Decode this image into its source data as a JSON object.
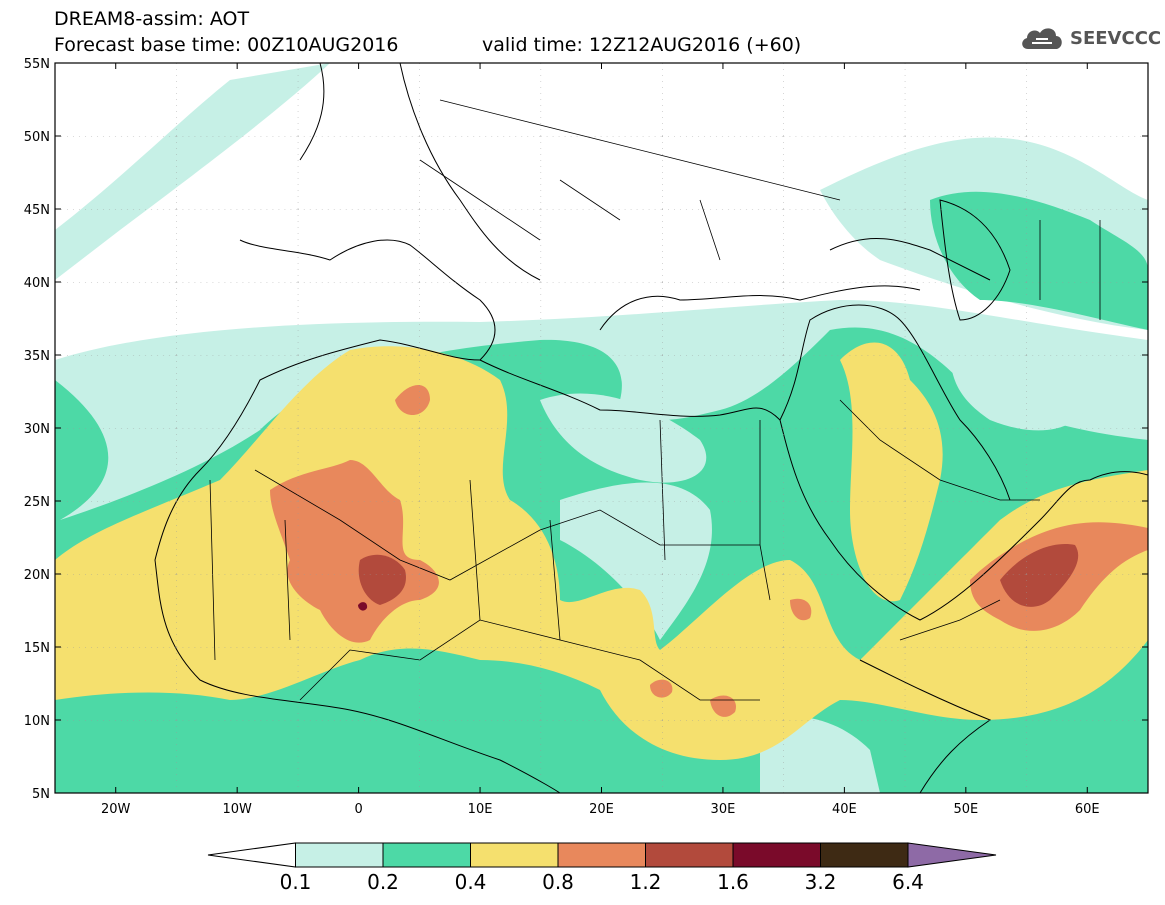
{
  "title": {
    "line1": "DREAM8-assim: AOT",
    "base_time": "Forecast base time: 00Z10AUG2016",
    "valid_time": "valid time: 12Z12AUG2016 (+60)"
  },
  "logo": {
    "text": "SEEVCCC",
    "icon": "cloud-icon"
  },
  "map": {
    "lon_ticks": [
      "20W",
      "10W",
      "0",
      "10E",
      "20E",
      "30E",
      "40E",
      "50E",
      "60E"
    ],
    "lat_ticks": [
      "55N",
      "50N",
      "45N",
      "40N",
      "35N",
      "30N",
      "25N",
      "20N",
      "15N",
      "10N",
      "5N"
    ],
    "lon_range": [
      -25,
      65
    ],
    "lat_range": [
      5,
      55
    ]
  },
  "colorbar": {
    "labels": [
      "0.1",
      "0.2",
      "0.4",
      "0.8",
      "1.2",
      "1.6",
      "3.2",
      "6.4"
    ],
    "colors": [
      "#ffffff",
      "#c6f0e6",
      "#4dd9a6",
      "#f5e06e",
      "#e8885c",
      "#b24a3c",
      "#7a0a2a",
      "#3e2a14",
      "#8e6aa6"
    ]
  }
}
